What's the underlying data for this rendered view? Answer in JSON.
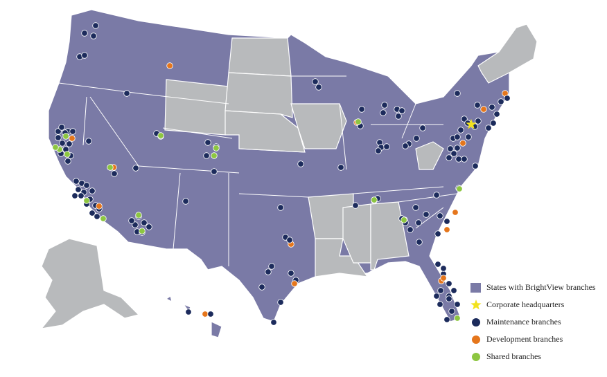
{
  "legend": [
    {
      "label": "States with BrightView branches",
      "color": "#7a7aa6"
    },
    {
      "label": "Corporate headquarters",
      "color": "#f2e21e"
    },
    {
      "label": "Maintenance branches",
      "color": "#1c2b5c"
    },
    {
      "label": "Development branches",
      "color": "#e5761c"
    },
    {
      "label": "Shared branches",
      "color": "#8dc641"
    }
  ],
  "other_states_color": "#b8babc"
}
